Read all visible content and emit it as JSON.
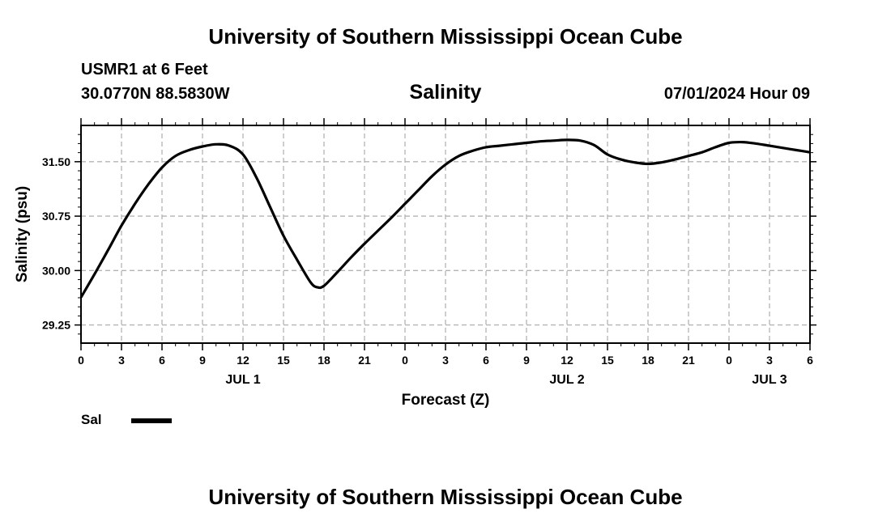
{
  "header": {
    "title": "University of Southern Mississippi Ocean Cube",
    "station": "USMR1 at 6 Feet",
    "coordinates": "30.0770N  88.5830W",
    "subtitle": "Salinity",
    "datestamp": "07/01/2024 Hour 09"
  },
  "footer": {
    "title": "University of Southern Mississippi Ocean Cube"
  },
  "legend": {
    "label": "Sal",
    "color": "#000000"
  },
  "chart_data": {
    "type": "line",
    "title": "Salinity",
    "xlabel": "Forecast (Z)",
    "ylabel": "Salinity (psu)",
    "x_hour_ticks": [
      "0",
      "3",
      "6",
      "9",
      "12",
      "15",
      "18",
      "21",
      "0",
      "3",
      "6",
      "9",
      "12",
      "15",
      "18",
      "21",
      "0",
      "3",
      "6"
    ],
    "date_labels": [
      {
        "text": "JUL 1",
        "at_tick": 4
      },
      {
        "text": "JUL 2",
        "at_tick": 12
      },
      {
        "text": "JUL 3",
        "at_tick": 17
      }
    ],
    "y_ticks": [
      29.25,
      30.0,
      30.75,
      31.5
    ],
    "y_tick_labels": [
      "29.25",
      "30.00",
      "30.75",
      "31.50"
    ],
    "ylim": [
      29.0,
      32.0
    ],
    "xlim_hours": [
      0,
      54
    ],
    "grid": true,
    "series": [
      {
        "name": "Sal",
        "color": "#000000",
        "x_hours": [
          0,
          1,
          2,
          3,
          4,
          5,
          6,
          7,
          8,
          9,
          10,
          11,
          12,
          13,
          14,
          15,
          16,
          17,
          17.5,
          18,
          19,
          20,
          21,
          22,
          23,
          24,
          25,
          26,
          27,
          28,
          29,
          30,
          31,
          32,
          33,
          34,
          35,
          36,
          37,
          38,
          39,
          40,
          41,
          42,
          43,
          44,
          45,
          46,
          47,
          48,
          49,
          50,
          51,
          52,
          53,
          54
        ],
        "values": [
          29.63,
          29.95,
          30.28,
          30.62,
          30.92,
          31.19,
          31.42,
          31.58,
          31.66,
          31.71,
          31.74,
          31.72,
          31.6,
          31.28,
          30.88,
          30.48,
          30.15,
          29.84,
          29.77,
          29.79,
          29.98,
          30.18,
          30.37,
          30.55,
          30.73,
          30.92,
          31.11,
          31.3,
          31.46,
          31.58,
          31.65,
          31.7,
          31.72,
          31.74,
          31.76,
          31.78,
          31.79,
          31.8,
          31.79,
          31.73,
          31.6,
          31.53,
          31.49,
          31.47,
          31.49,
          31.53,
          31.58,
          31.63,
          31.7,
          31.76,
          31.77,
          31.75,
          31.72,
          31.69,
          31.66,
          31.63
        ]
      }
    ]
  }
}
